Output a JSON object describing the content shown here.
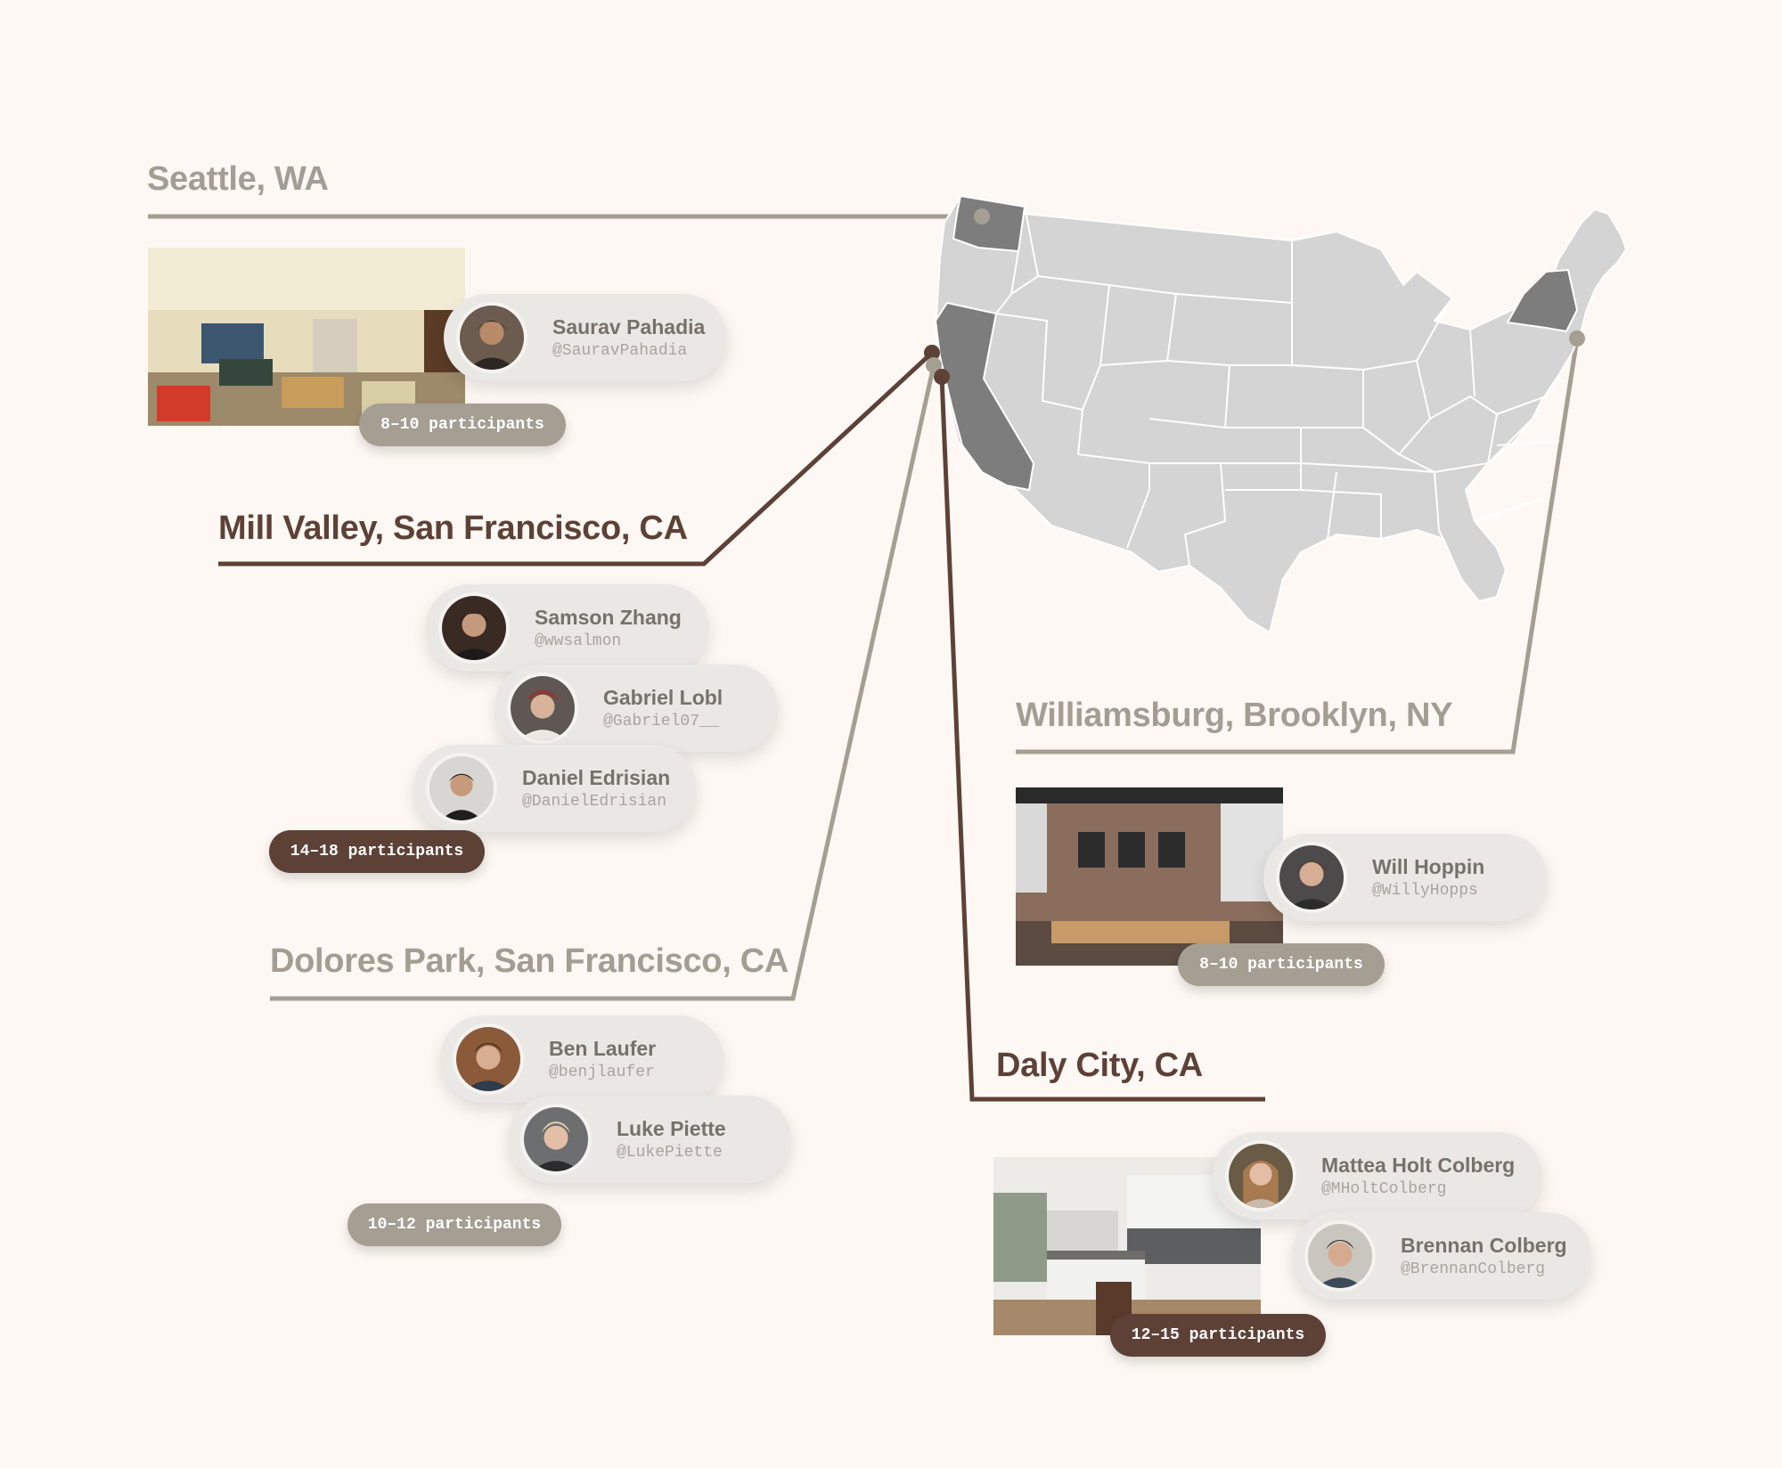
{
  "locations": {
    "seattle": {
      "city": "Seattle, WA",
      "participants": "8–10 participants",
      "people": [
        {
          "name": "Saurav Pahadia",
          "handle": "@SauravPahadia"
        }
      ]
    },
    "mill_valley": {
      "city": "Mill Valley, San Francisco, CA",
      "participants": "14–18 participants",
      "people": [
        {
          "name": "Samson Zhang",
          "handle": "@wwsalmon"
        },
        {
          "name": "Gabriel Lobl",
          "handle": "@Gabriel07__"
        },
        {
          "name": "Daniel Edrisian",
          "handle": "@DanielEdrisian"
        }
      ]
    },
    "dolores_park": {
      "city": "Dolores Park, San Francisco, CA",
      "participants": "10–12 participants",
      "people": [
        {
          "name": "Ben Laufer",
          "handle": "@benjlaufer"
        },
        {
          "name": "Luke Piette",
          "handle": "@LukePiette"
        }
      ]
    },
    "williamsburg": {
      "city": "Williamsburg, Brooklyn, NY",
      "participants": "8–10 participants",
      "people": [
        {
          "name": "Will Hoppin",
          "handle": "@WillyHopps"
        }
      ]
    },
    "daly_city": {
      "city": "Daly City, CA",
      "participants": "12–15 participants",
      "people": [
        {
          "name": "Mattea Holt Colberg",
          "handle": "@MHoltColberg"
        },
        {
          "name": "Brennan Colberg",
          "handle": "@BrennanColberg"
        }
      ]
    }
  },
  "colors": {
    "background": "#fdf8f3",
    "gray_accent": "#a59e93",
    "brown_accent": "#5d4137",
    "map_fill": "#d4d4d4",
    "map_highlight": "#7d7d7d"
  }
}
